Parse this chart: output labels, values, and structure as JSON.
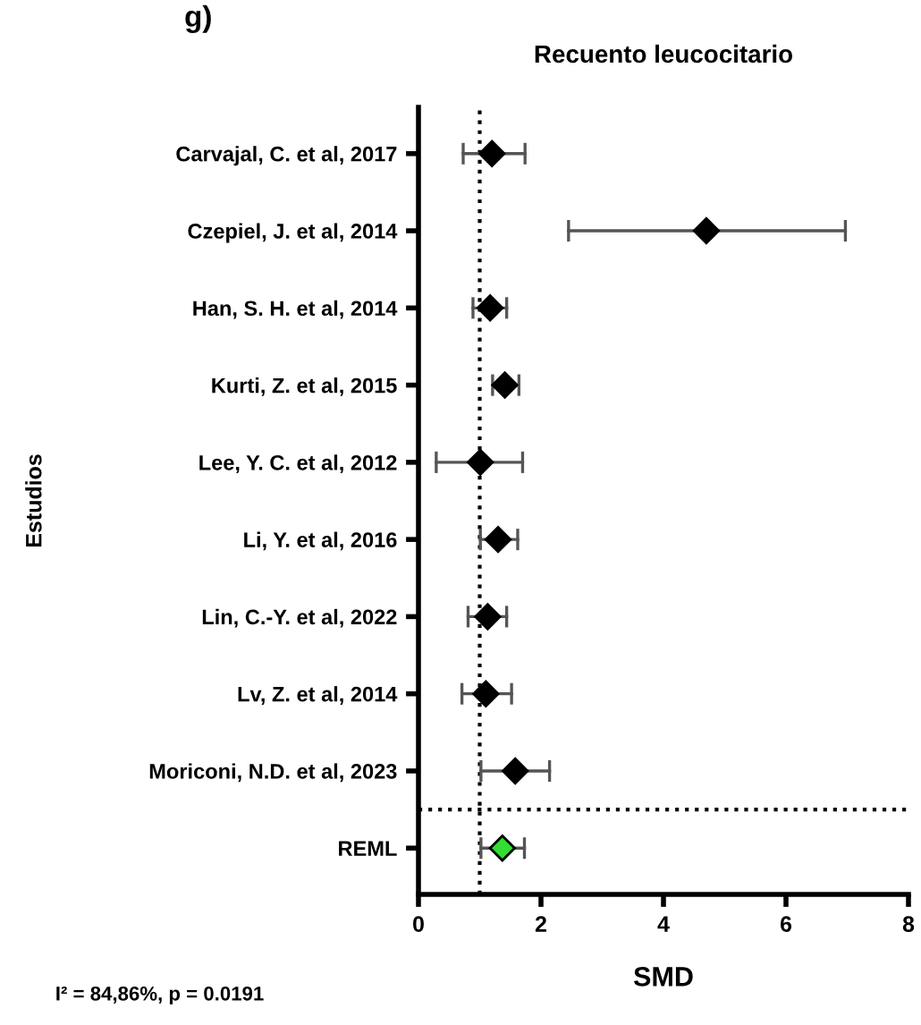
{
  "chart_data": {
    "type": "scatter",
    "orientation": "horizontal",
    "title": "Recuento leucocitario",
    "xlabel": "SMD",
    "ylabel": "Estudios",
    "categories": [
      "Carvajal, C. et al, 2017",
      "Czepiel, J. et al, 2014",
      "Han, S. H. et al, 2014",
      "Kurti, Z. et al, 2015",
      "Lee, Y. C. et al, 2012",
      "Li, Y. et al, 2016",
      "Lin, C.-Y. et al, 2022",
      "Lv, Z. et al, 2014",
      "Moriconi, N.D. et al, 2023",
      "REML"
    ],
    "values": [
      1.2,
      4.7,
      1.17,
      1.41,
      1.01,
      1.3,
      1.13,
      1.1,
      1.58,
      1.37
    ],
    "errors": [
      [
        0.73,
        1.74
      ],
      [
        2.45,
        6.97
      ],
      [
        0.89,
        1.44
      ],
      [
        1.21,
        1.64
      ],
      [
        0.29,
        1.7
      ],
      [
        1.01,
        1.62
      ],
      [
        0.81,
        1.44
      ],
      [
        0.71,
        1.52
      ],
      [
        1.02,
        2.14
      ],
      [
        1.02,
        1.73
      ]
    ],
    "colors": [
      "#000000",
      "#000000",
      "#000000",
      "#000000",
      "#000000",
      "#000000",
      "#000000",
      "#000000",
      "#000000",
      "#33dd33"
    ],
    "xlim": [
      0,
      8
    ],
    "xticks": [
      0,
      2,
      4,
      6,
      8
    ],
    "marker": "diamond",
    "grid": false,
    "legend": false,
    "ref_lines": [
      {
        "axis": "x",
        "value": 1,
        "line_style": "dotted",
        "color": "#000000"
      }
    ],
    "annotations": [
      "g)",
      "I² = 84,86%, p = 0.0191"
    ]
  }
}
